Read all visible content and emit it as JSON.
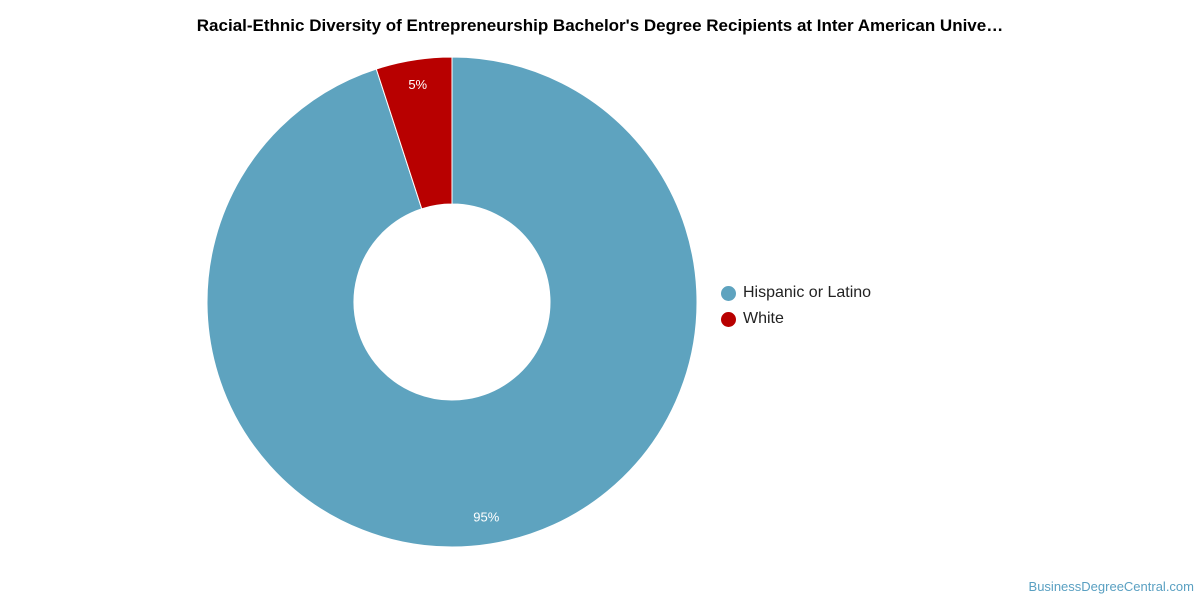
{
  "chart_data": {
    "type": "pie",
    "title": "Racial-Ethnic Diversity of Entrepreneurship Bachelor's Degree Recipients at Inter American Unive…",
    "donut": true,
    "categories": [
      "Hispanic or Latino",
      "White"
    ],
    "values": [
      95,
      5
    ],
    "labels": [
      "95%",
      "5%"
    ],
    "colors": [
      "#5ea3bf",
      "#b80000"
    ],
    "legend_placement": "right"
  },
  "credit": "BusinessDegreeCentral.com"
}
